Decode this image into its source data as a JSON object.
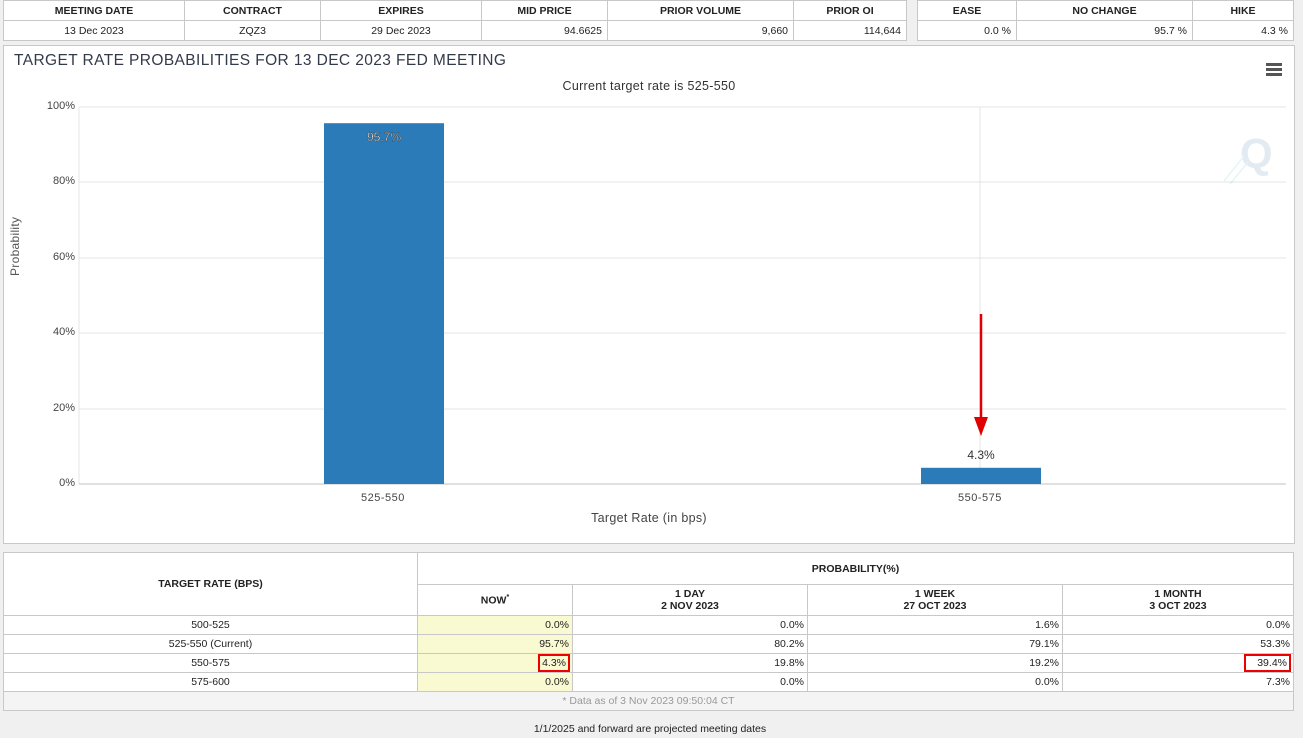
{
  "top": {
    "headers": [
      "MEETING DATE",
      "CONTRACT",
      "EXPIRES",
      "MID PRICE",
      "PRIOR VOLUME",
      "PRIOR OI"
    ],
    "values": [
      "13 Dec 2023",
      "ZQZ3",
      "29 Dec 2023",
      "94.6625",
      "9,660",
      "114,644"
    ],
    "headers2": [
      "EASE",
      "NO CHANGE",
      "HIKE"
    ],
    "values2": [
      "0.0 %",
      "95.7 %",
      "4.3 %"
    ]
  },
  "chart": {
    "title": "TARGET RATE PROBABILITIES FOR 13 DEC 2023 FED MEETING",
    "subtitle": "Current target rate is 525-550",
    "ylabel": "Probability",
    "xlabel": "Target Rate (in bps)",
    "yticks": [
      "100%",
      "80%",
      "60%",
      "40%",
      "20%",
      "0%"
    ],
    "bar_color": "#2b7bb9",
    "arrow_color": "#e00000"
  },
  "chart_data": {
    "type": "bar",
    "title": "TARGET RATE PROBABILITIES FOR 13 DEC 2023 FED MEETING",
    "subtitle": "Current target rate is 525-550",
    "categories": [
      "525-550",
      "550-575"
    ],
    "values": [
      95.7,
      4.3
    ],
    "data_labels": [
      "95.7%",
      "4.3%"
    ],
    "xlabel": "Target Rate (in bps)",
    "ylabel": "Probability",
    "ylim": [
      0,
      100
    ],
    "grid": true
  },
  "prob": {
    "col1_header": "TARGET RATE (BPS)",
    "group_header": "PROBABILITY(%)",
    "now_label": "NOW",
    "now_mark": "*",
    "cols": [
      {
        "l1": "1 DAY",
        "l2": "2 NOV 2023"
      },
      {
        "l1": "1 WEEK",
        "l2": "27 OCT 2023"
      },
      {
        "l1": "1 MONTH",
        "l2": "3 OCT 2023"
      }
    ],
    "rows": [
      {
        "rate": "500-525",
        "now": "0.0%",
        "d": "0.0%",
        "w": "1.6%",
        "m": "0.0%"
      },
      {
        "rate": "525-550 (Current)",
        "now": "95.7%",
        "d": "80.2%",
        "w": "79.1%",
        "m": "53.3%"
      },
      {
        "rate": "550-575",
        "now": "4.3%",
        "d": "19.8%",
        "w": "19.2%",
        "m": "39.4%"
      },
      {
        "rate": "575-600",
        "now": "0.0%",
        "d": "0.0%",
        "w": "0.0%",
        "m": "7.3%"
      }
    ],
    "asof": "* Data as of 3 Nov 2023 09:50:04 CT"
  },
  "footer": "1/1/2025 and forward are projected meeting dates"
}
